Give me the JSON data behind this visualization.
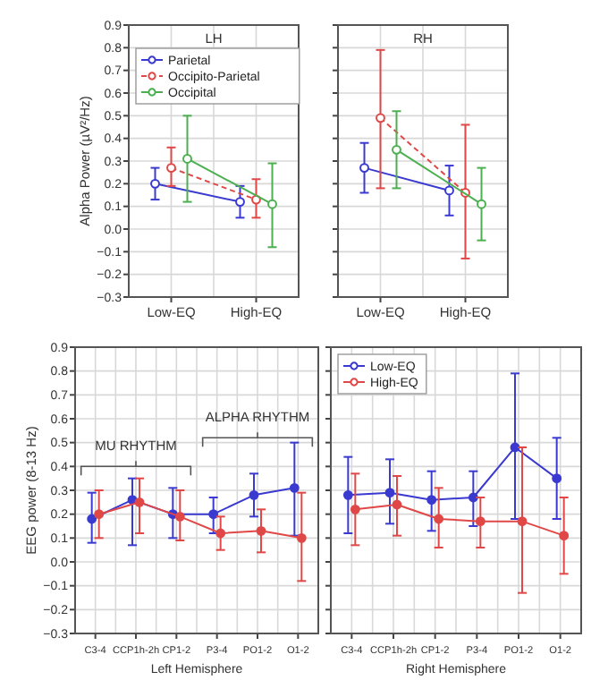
{
  "chart_data": [
    {
      "type": "line",
      "title": "LH",
      "ylabel": "Alpha Power (µV²/Hz)",
      "categories": [
        "Low-EQ",
        "High-EQ"
      ],
      "ylim": [
        -0.3,
        0.9
      ],
      "yticks": [
        -0.3,
        -0.2,
        -0.1,
        {
          "value": 0,
          "label": "0.0"
        },
        0.1,
        0.2,
        0.3,
        0.4,
        0.5,
        0.6,
        0.7,
        0.8,
        0.9
      ],
      "grid": true,
      "legend": "top left",
      "marker": "circle",
      "series": [
        {
          "name": "Parietal",
          "color": "#3a3ad0",
          "values": [
            0.2,
            0.12
          ],
          "errors": [
            [
              0.13,
              0.27
            ],
            [
              0.05,
              0.19
            ]
          ]
        },
        {
          "name": "Occipito-Parietal",
          "color": "#e04848",
          "line_style": "dashed",
          "values": [
            0.27,
            0.13
          ],
          "errors": [
            [
              0.19,
              0.36
            ],
            [
              0.05,
              0.22
            ]
          ]
        },
        {
          "name": "Occipital",
          "color": "#4caf50",
          "values": [
            0.31,
            0.11
          ],
          "errors": [
            [
              0.12,
              0.5
            ],
            [
              -0.08,
              0.29
            ]
          ]
        }
      ]
    },
    {
      "type": "line",
      "title": "RH",
      "categories": [
        "Low-EQ",
        "High-EQ"
      ],
      "ylim": [
        -0.3,
        0.9
      ],
      "yticks": [
        -0.3,
        -0.2,
        -0.1,
        0,
        0.1,
        0.2,
        0.3,
        0.4,
        0.5,
        0.6,
        0.7,
        0.8,
        0.9
      ],
      "grid": true,
      "tick_labels": "x",
      "marker": "circle",
      "series": [
        {
          "color": "#3a3ad0",
          "values": [
            0.27,
            0.17
          ],
          "errors": [
            [
              0.16,
              0.38
            ],
            [
              0.06,
              0.28
            ]
          ]
        },
        {
          "color": "#e04848",
          "line_style": "dashed",
          "values": [
            0.49,
            0.16
          ],
          "errors": [
            [
              0.18,
              0.79
            ],
            [
              -0.13,
              0.46
            ]
          ]
        },
        {
          "color": "#4caf50",
          "values": [
            0.35,
            0.11
          ],
          "errors": [
            [
              0.18,
              0.52
            ],
            [
              -0.05,
              0.27
            ]
          ]
        }
      ]
    },
    {
      "type": "line",
      "xlabel": "Left Hemisphere",
      "ylabel": "EEG power (8-13 Hz)",
      "categories": [
        "C3-4",
        "CCP1h-2h",
        "CP1-2",
        "P3-4",
        "PO1-2",
        "O1-2"
      ],
      "ylim": [
        -0.3,
        0.9
      ],
      "yticks": [
        -0.3,
        -0.2,
        -0.1,
        {
          "value": 0,
          "label": "0.0"
        },
        0.1,
        0.2,
        0.3,
        0.4,
        0.5,
        0.6,
        0.7,
        0.8,
        0.9
      ],
      "grid": true,
      "marker": "circle",
      "annotations": [
        "MU RHYTHM",
        "ALPHA RHYTHM"
      ],
      "series": [
        {
          "color": "#3a3ad0",
          "values": [
            0.18,
            0.26,
            0.2,
            0.2,
            0.28,
            0.31
          ],
          "errors": [
            [
              0.08,
              0.29
            ],
            [
              0.07,
              0.35
            ],
            [
              0.1,
              0.31
            ],
            [
              0.12,
              0.27
            ],
            [
              0.19,
              0.37
            ],
            [
              0.11,
              0.5
            ]
          ]
        },
        {
          "color": "#e04848",
          "values": [
            0.2,
            0.25,
            0.19,
            0.12,
            0.13,
            0.1
          ],
          "errors": [
            [
              0.1,
              0.3
            ],
            [
              0.12,
              0.35
            ],
            [
              0.09,
              0.3
            ],
            [
              0.05,
              0.19
            ],
            [
              0.04,
              0.22
            ],
            [
              -0.08,
              0.29
            ]
          ]
        }
      ]
    },
    {
      "type": "line",
      "xlabel": "Right Hemisphere",
      "categories": [
        "C3-4",
        "CCP1h-2h",
        "CP1-2",
        "P3-4",
        "PO1-2",
        "O1-2"
      ],
      "ylim": [
        -0.3,
        0.9
      ],
      "yticks": [
        -0.3,
        -0.2,
        -0.1,
        0.0,
        0.1,
        0.2,
        0.3,
        0.4,
        0.5,
        0.6,
        0.7,
        0.8,
        0.9
      ],
      "grid": true,
      "tick_labels": "x",
      "legend": "top left",
      "marker": "circle",
      "series": [
        {
          "name": "Low-EQ",
          "color": "#3a3ad0",
          "values": [
            0.28,
            0.29,
            0.26,
            0.27,
            0.48,
            0.35
          ],
          "errors": [
            [
              0.12,
              0.44
            ],
            [
              0.16,
              0.43
            ],
            [
              0.13,
              0.38
            ],
            [
              0.15,
              0.38
            ],
            [
              0.18,
              0.79
            ],
            [
              0.18,
              0.52
            ]
          ]
        },
        {
          "name": "High-EQ",
          "color": "#e04848",
          "values": [
            0.22,
            0.24,
            0.18,
            0.17,
            0.17,
            0.11
          ],
          "errors": [
            [
              0.07,
              0.37
            ],
            [
              0.11,
              0.36
            ],
            [
              0.06,
              0.31
            ],
            [
              0.06,
              0.27
            ],
            [
              -0.13,
              0.48
            ],
            [
              -0.05,
              0.27
            ]
          ]
        }
      ]
    }
  ]
}
